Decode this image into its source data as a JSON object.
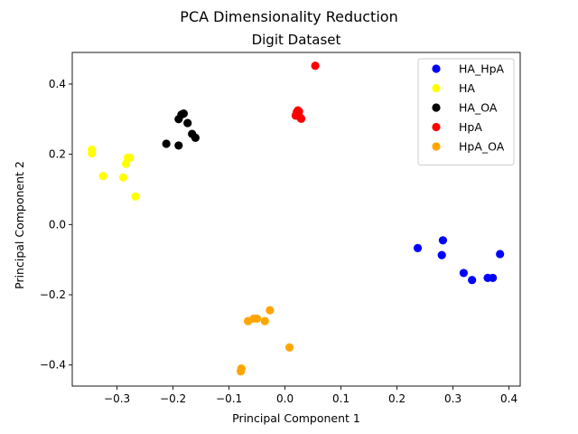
{
  "chart_data": {
    "type": "scatter",
    "suptitle": "PCA Dimensionality Reduction",
    "title": "Digit Dataset",
    "xlabel": "Principal Component 1",
    "ylabel": "Principal Component 2",
    "xlim": [
      -0.38,
      0.42
    ],
    "ylim": [
      -0.46,
      0.49
    ],
    "xticks": [
      -0.3,
      -0.2,
      -0.1,
      0.0,
      0.1,
      0.2,
      0.3,
      0.4
    ],
    "xtick_labels": [
      "−0.3",
      "−0.2",
      "−0.1",
      "0.0",
      "0.1",
      "0.2",
      "0.3",
      "0.4"
    ],
    "yticks": [
      -0.4,
      -0.2,
      0.0,
      0.2,
      0.4
    ],
    "ytick_labels": [
      "−0.4",
      "−0.2",
      "0.0",
      "0.2",
      "0.4"
    ],
    "grid": false,
    "legend_position": "top-right",
    "series": [
      {
        "name": "HA_HpA",
        "color": "#0000ff",
        "points": [
          [
            0.237,
            -0.067
          ],
          [
            0.282,
            -0.045
          ],
          [
            0.28,
            -0.087
          ],
          [
            0.319,
            -0.138
          ],
          [
            0.334,
            -0.158
          ],
          [
            0.362,
            -0.152
          ],
          [
            0.371,
            -0.152
          ],
          [
            0.384,
            -0.084
          ]
        ]
      },
      {
        "name": "HA",
        "color": "#ffff00",
        "points": [
          [
            -0.345,
            0.213
          ],
          [
            -0.345,
            0.203
          ],
          [
            -0.325,
            0.138
          ],
          [
            -0.281,
            0.19
          ],
          [
            -0.277,
            0.19
          ],
          [
            -0.284,
            0.173
          ],
          [
            -0.289,
            0.134
          ],
          [
            -0.267,
            0.08
          ]
        ]
      },
      {
        "name": "HA_OA",
        "color": "#000000",
        "points": [
          [
            -0.212,
            0.23
          ],
          [
            -0.19,
            0.225
          ],
          [
            -0.19,
            0.3
          ],
          [
            -0.185,
            0.313
          ],
          [
            -0.181,
            0.316
          ],
          [
            -0.174,
            0.289
          ],
          [
            -0.166,
            0.258
          ],
          [
            -0.16,
            0.247
          ]
        ]
      },
      {
        "name": "HpA",
        "color": "#ff0000",
        "points": [
          [
            0.054,
            0.452
          ],
          [
            0.019,
            0.31
          ],
          [
            0.021,
            0.32
          ],
          [
            0.023,
            0.325
          ],
          [
            0.025,
            0.322
          ],
          [
            0.027,
            0.305
          ],
          [
            0.029,
            0.301
          ]
        ]
      },
      {
        "name": "HpA_OA",
        "color": "#ffa500",
        "points": [
          [
            -0.078,
            -0.41
          ],
          [
            -0.079,
            -0.418
          ],
          [
            -0.066,
            -0.275
          ],
          [
            -0.056,
            -0.268
          ],
          [
            -0.05,
            -0.268
          ],
          [
            -0.036,
            -0.275
          ],
          [
            -0.027,
            -0.244
          ],
          [
            0.008,
            -0.35
          ]
        ]
      }
    ]
  }
}
